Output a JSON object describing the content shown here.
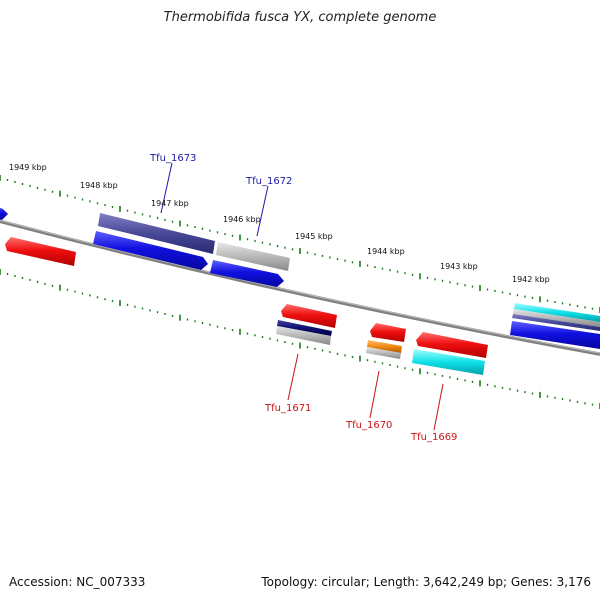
{
  "title": "Thermobifida fusca YX, complete genome",
  "footer": {
    "accession": "Accession: NC_007333",
    "summary": "Topology: circular; Length: 3,642,249 bp; Genes: 3,176"
  },
  "colors": {
    "backbone": "#808080",
    "tick": "#1a7a1a",
    "label_top": "#1a1aa6",
    "label_bottom": "#c81414"
  },
  "scale_labels": [
    {
      "kbp": 1949,
      "text": "1949 kbp"
    },
    {
      "kbp": 1948,
      "text": "1948 kbp"
    },
    {
      "kbp": 1947,
      "text": "1947 kbp"
    },
    {
      "kbp": 1946,
      "text": "1946 kbp"
    },
    {
      "kbp": 1945,
      "text": "1945 kbp"
    },
    {
      "kbp": 1944,
      "text": "1944 kbp"
    },
    {
      "kbp": 1943,
      "text": "1943 kbp"
    },
    {
      "kbp": 1942,
      "text": "1942 kbp"
    }
  ],
  "gene_labels": [
    {
      "name": "Tfu_1673",
      "side": "top"
    },
    {
      "name": "Tfu_1672",
      "side": "top"
    },
    {
      "name": "Tfu_1671",
      "side": "bottom"
    },
    {
      "name": "Tfu_1670",
      "side": "bottom"
    },
    {
      "name": "Tfu_1669",
      "side": "bottom"
    }
  ],
  "features": [
    {
      "id": "f-left-blue-arrow",
      "color": "#1010e0",
      "strand": "top"
    },
    {
      "id": "f-left-red",
      "color": "#f01010",
      "strand": "bottom"
    },
    {
      "id": "f-1673-purple",
      "color": "#484898",
      "strand": "top"
    },
    {
      "id": "f-1673-blue",
      "color": "#1010e0",
      "strand": "top"
    },
    {
      "id": "f-1672-gray",
      "color": "#b0b0b0",
      "strand": "top"
    },
    {
      "id": "f-1672-blue",
      "color": "#1010e0",
      "strand": "top"
    },
    {
      "id": "f-1671-red",
      "color": "#f01010",
      "strand": "bottom"
    },
    {
      "id": "f-1671-navy",
      "color": "#101070",
      "strand": "bottom"
    },
    {
      "id": "f-1671-gray",
      "color": "#b0b0b0",
      "strand": "bottom"
    },
    {
      "id": "f-1670-red",
      "color": "#f01010",
      "strand": "bottom"
    },
    {
      "id": "f-1670-orange",
      "color": "#f08a10",
      "strand": "bottom"
    },
    {
      "id": "f-1670-gray",
      "color": "#b0b0b0",
      "strand": "bottom"
    },
    {
      "id": "f-1669-red",
      "color": "#f01010",
      "strand": "bottom"
    },
    {
      "id": "f-1669-cyan",
      "color": "#10e0e8",
      "strand": "bottom"
    },
    {
      "id": "f-right-cyan",
      "color": "#10d8e0",
      "strand": "top"
    },
    {
      "id": "f-right-gray",
      "color": "#b0b0b0",
      "strand": "top"
    },
    {
      "id": "f-right-purple",
      "color": "#484898",
      "strand": "top"
    },
    {
      "id": "f-right-blue",
      "color": "#1010e0",
      "strand": "top"
    }
  ]
}
